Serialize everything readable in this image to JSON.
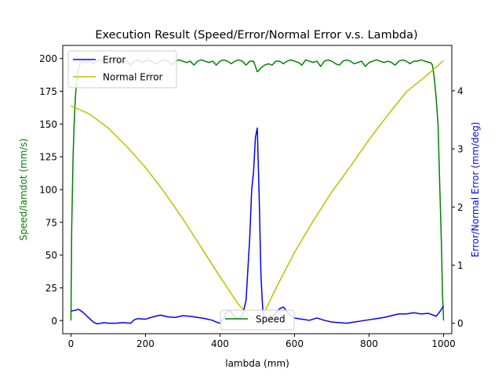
{
  "colors": {
    "speed": "#008000",
    "error": "#0000ff",
    "normal_error": "#bfbf00",
    "axis": "#000000",
    "background": "#ffffff"
  },
  "chart_data": {
    "type": "line",
    "title": "Execution Result (Speed/Error/Normal Error v.s. Lambda)",
    "xlabel": "lambda (mm)",
    "ylabel_left": "Speed/lamdot (mm/s)",
    "ylabel_right": "Error/Normal Error (mm/deg)",
    "xlim": [
      -22,
      1022
    ],
    "ylim_left": [
      -10,
      210
    ],
    "ylim_right": [
      -0.18,
      4.78
    ],
    "x_ticks": [
      0,
      200,
      400,
      600,
      800,
      1000
    ],
    "x_tick_labels": [
      "0",
      "200",
      "400",
      "600",
      "800",
      "1000"
    ],
    "y_left_ticks": [
      0,
      25,
      50,
      75,
      100,
      125,
      150,
      175,
      200
    ],
    "y_left_tick_labels": [
      "0",
      "25",
      "50",
      "75",
      "100",
      "125",
      "150",
      "175",
      "200"
    ],
    "y_right_ticks": [
      0,
      1,
      2,
      3,
      4
    ],
    "y_right_tick_labels": [
      "0",
      "1",
      "2",
      "3",
      "4"
    ],
    "grid": false,
    "legends": [
      {
        "position": "top-left",
        "entries": [
          {
            "name": "Error",
            "color": "#0000ff"
          },
          {
            "name": "Normal Error",
            "color": "#bfbf00"
          }
        ]
      },
      {
        "position": "bottom-center",
        "entries": [
          {
            "name": "Speed",
            "color": "#008000"
          }
        ]
      }
    ],
    "series": [
      {
        "name": "Speed",
        "axis": "left",
        "color": "#008000",
        "x": [
          0,
          2,
          4,
          6,
          8,
          10,
          13,
          16,
          20,
          25,
          30,
          40,
          50,
          60,
          70,
          80,
          90,
          100,
          110,
          120,
          130,
          140,
          150,
          160,
          170,
          180,
          190,
          200,
          210,
          220,
          230,
          240,
          250,
          260,
          270,
          280,
          290,
          300,
          310,
          320,
          330,
          340,
          350,
          360,
          370,
          380,
          390,
          400,
          410,
          420,
          430,
          440,
          450,
          460,
          470,
          480,
          490,
          495,
          500,
          505,
          510,
          520,
          530,
          540,
          550,
          560,
          570,
          580,
          590,
          600,
          610,
          620,
          630,
          640,
          650,
          660,
          670,
          680,
          690,
          700,
          710,
          720,
          730,
          740,
          750,
          760,
          770,
          780,
          790,
          800,
          810,
          820,
          830,
          840,
          850,
          860,
          870,
          880,
          890,
          900,
          910,
          920,
          930,
          940,
          950,
          960,
          965,
          970,
          975,
          980,
          985,
          990,
          994,
          997,
          1000
        ],
        "y": [
          0,
          70,
          100,
          128,
          145,
          160,
          175,
          185,
          192,
          196,
          198,
          197,
          198,
          196,
          198,
          199,
          197,
          198,
          198,
          199,
          197,
          198,
          198,
          195,
          198,
          199,
          197,
          198,
          199,
          197,
          196,
          198,
          199,
          198,
          195,
          198,
          199,
          198,
          197,
          198,
          195,
          198,
          199,
          198,
          197,
          198,
          195,
          198,
          199,
          198,
          196,
          198,
          199,
          198,
          195,
          198,
          198,
          194,
          190,
          191,
          193,
          195,
          196,
          195,
          198,
          198,
          196,
          198,
          199,
          198,
          197,
          195,
          199,
          198,
          197,
          198,
          194,
          198,
          199,
          198,
          196,
          195,
          198,
          199,
          198,
          196,
          197,
          198,
          194,
          197,
          198,
          199,
          198,
          197,
          198,
          197,
          195,
          198,
          199,
          198,
          196,
          198,
          198,
          199,
          198,
          197,
          197,
          195,
          185,
          170,
          150,
          100,
          60,
          20,
          0
        ]
      },
      {
        "name": "Error",
        "axis": "right",
        "color": "#0000ff",
        "x": [
          0,
          10,
          20,
          30,
          40,
          50,
          60,
          70,
          80,
          90,
          100,
          120,
          140,
          160,
          170,
          180,
          200,
          220,
          240,
          260,
          280,
          300,
          320,
          340,
          360,
          380,
          390,
          400,
          410,
          420,
          430,
          440,
          450,
          460,
          470,
          480,
          485,
          490,
          495,
          500,
          505,
          510,
          515,
          520,
          530,
          540,
          550,
          560,
          570,
          580,
          590,
          600,
          620,
          640,
          660,
          680,
          700,
          720,
          740,
          760,
          780,
          800,
          820,
          840,
          860,
          880,
          900,
          920,
          940,
          960,
          980,
          990,
          1000
        ],
        "y": [
          0.21,
          0.22,
          0.24,
          0.2,
          0.14,
          0.08,
          0.02,
          -0.01,
          0.0,
          0.01,
          0.0,
          0.0,
          0.01,
          0.0,
          0.06,
          0.08,
          0.07,
          0.11,
          0.14,
          0.11,
          0.1,
          0.13,
          0.12,
          0.1,
          0.08,
          0.05,
          0.02,
          0.0,
          0.08,
          0.22,
          0.2,
          0.1,
          0.08,
          0.12,
          0.4,
          1.5,
          2.3,
          2.6,
          3.2,
          3.36,
          2.2,
          0.8,
          0.2,
          0.08,
          0.03,
          0.1,
          0.18,
          0.25,
          0.28,
          0.2,
          0.13,
          0.09,
          0.07,
          0.05,
          0.09,
          0.05,
          0.02,
          0.01,
          0.0,
          0.02,
          0.04,
          0.06,
          0.08,
          0.1,
          0.13,
          0.16,
          0.16,
          0.18,
          0.16,
          0.17,
          0.12,
          0.2,
          0.3
        ]
      },
      {
        "name": "Normal Error",
        "axis": "right",
        "color": "#bfbf00",
        "x": [
          0,
          50,
          100,
          150,
          200,
          250,
          300,
          350,
          400,
          450,
          480,
          500,
          520,
          550,
          600,
          650,
          700,
          750,
          800,
          850,
          900,
          950,
          1000
        ],
        "y": [
          3.74,
          3.6,
          3.36,
          3.04,
          2.68,
          2.26,
          1.8,
          1.3,
          0.8,
          0.32,
          0.12,
          0.05,
          0.2,
          0.6,
          1.22,
          1.76,
          2.26,
          2.7,
          3.16,
          3.58,
          3.98,
          4.24,
          4.52
        ]
      }
    ]
  }
}
